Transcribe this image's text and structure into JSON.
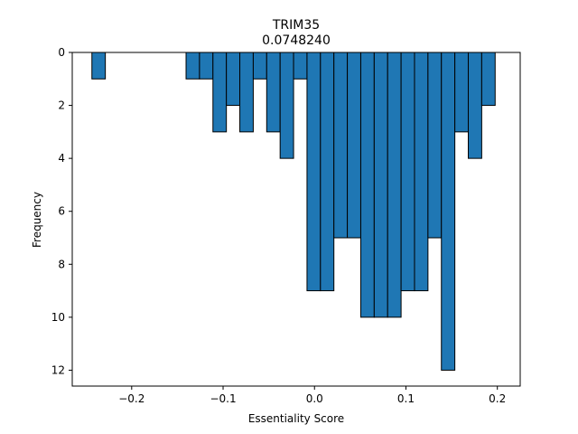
{
  "chart_data": {
    "type": "bar",
    "title": "TRIM35",
    "subtitle": "0.0748240",
    "xlabel": "Essentiality Score",
    "ylabel": "Frequency",
    "xlim": [
      -0.265,
      0.225
    ],
    "ylim": [
      12.6,
      0
    ],
    "y_inverted": true,
    "bin_width": 0.0147,
    "bar_color": "#1f77b4",
    "edge_color": "#000000",
    "bins": [
      {
        "x0": -0.2435,
        "count": 1
      },
      {
        "x0": -0.1405,
        "count": 1
      },
      {
        "x0": -0.1258,
        "count": 1
      },
      {
        "x0": -0.1111,
        "count": 3
      },
      {
        "x0": -0.0964,
        "count": 2
      },
      {
        "x0": -0.0817,
        "count": 3
      },
      {
        "x0": -0.067,
        "count": 1
      },
      {
        "x0": -0.0523,
        "count": 3
      },
      {
        "x0": -0.0376,
        "count": 4
      },
      {
        "x0": -0.0229,
        "count": 1
      },
      {
        "x0": -0.0082,
        "count": 9
      },
      {
        "x0": 0.0065,
        "count": 9
      },
      {
        "x0": 0.0212,
        "count": 7
      },
      {
        "x0": 0.0359,
        "count": 7
      },
      {
        "x0": 0.0506,
        "count": 10
      },
      {
        "x0": 0.0653,
        "count": 10
      },
      {
        "x0": 0.08,
        "count": 10
      },
      {
        "x0": 0.0947,
        "count": 9
      },
      {
        "x0": 0.1094,
        "count": 9
      },
      {
        "x0": 0.1241,
        "count": 7
      },
      {
        "x0": 0.1388,
        "count": 12
      },
      {
        "x0": 0.1535,
        "count": 3
      },
      {
        "x0": 0.1682,
        "count": 4
      },
      {
        "x0": 0.1829,
        "count": 2
      }
    ],
    "x_ticks": [
      -0.2,
      -0.1,
      0.0,
      0.1,
      0.2
    ],
    "x_tick_labels": [
      "−0.2",
      "−0.1",
      "0.0",
      "0.1",
      "0.2"
    ],
    "y_ticks": [
      0,
      2,
      4,
      6,
      8,
      10,
      12
    ],
    "y_tick_labels": [
      "0",
      "2",
      "4",
      "6",
      "8",
      "10",
      "12"
    ],
    "grid": false,
    "legend": "none"
  }
}
